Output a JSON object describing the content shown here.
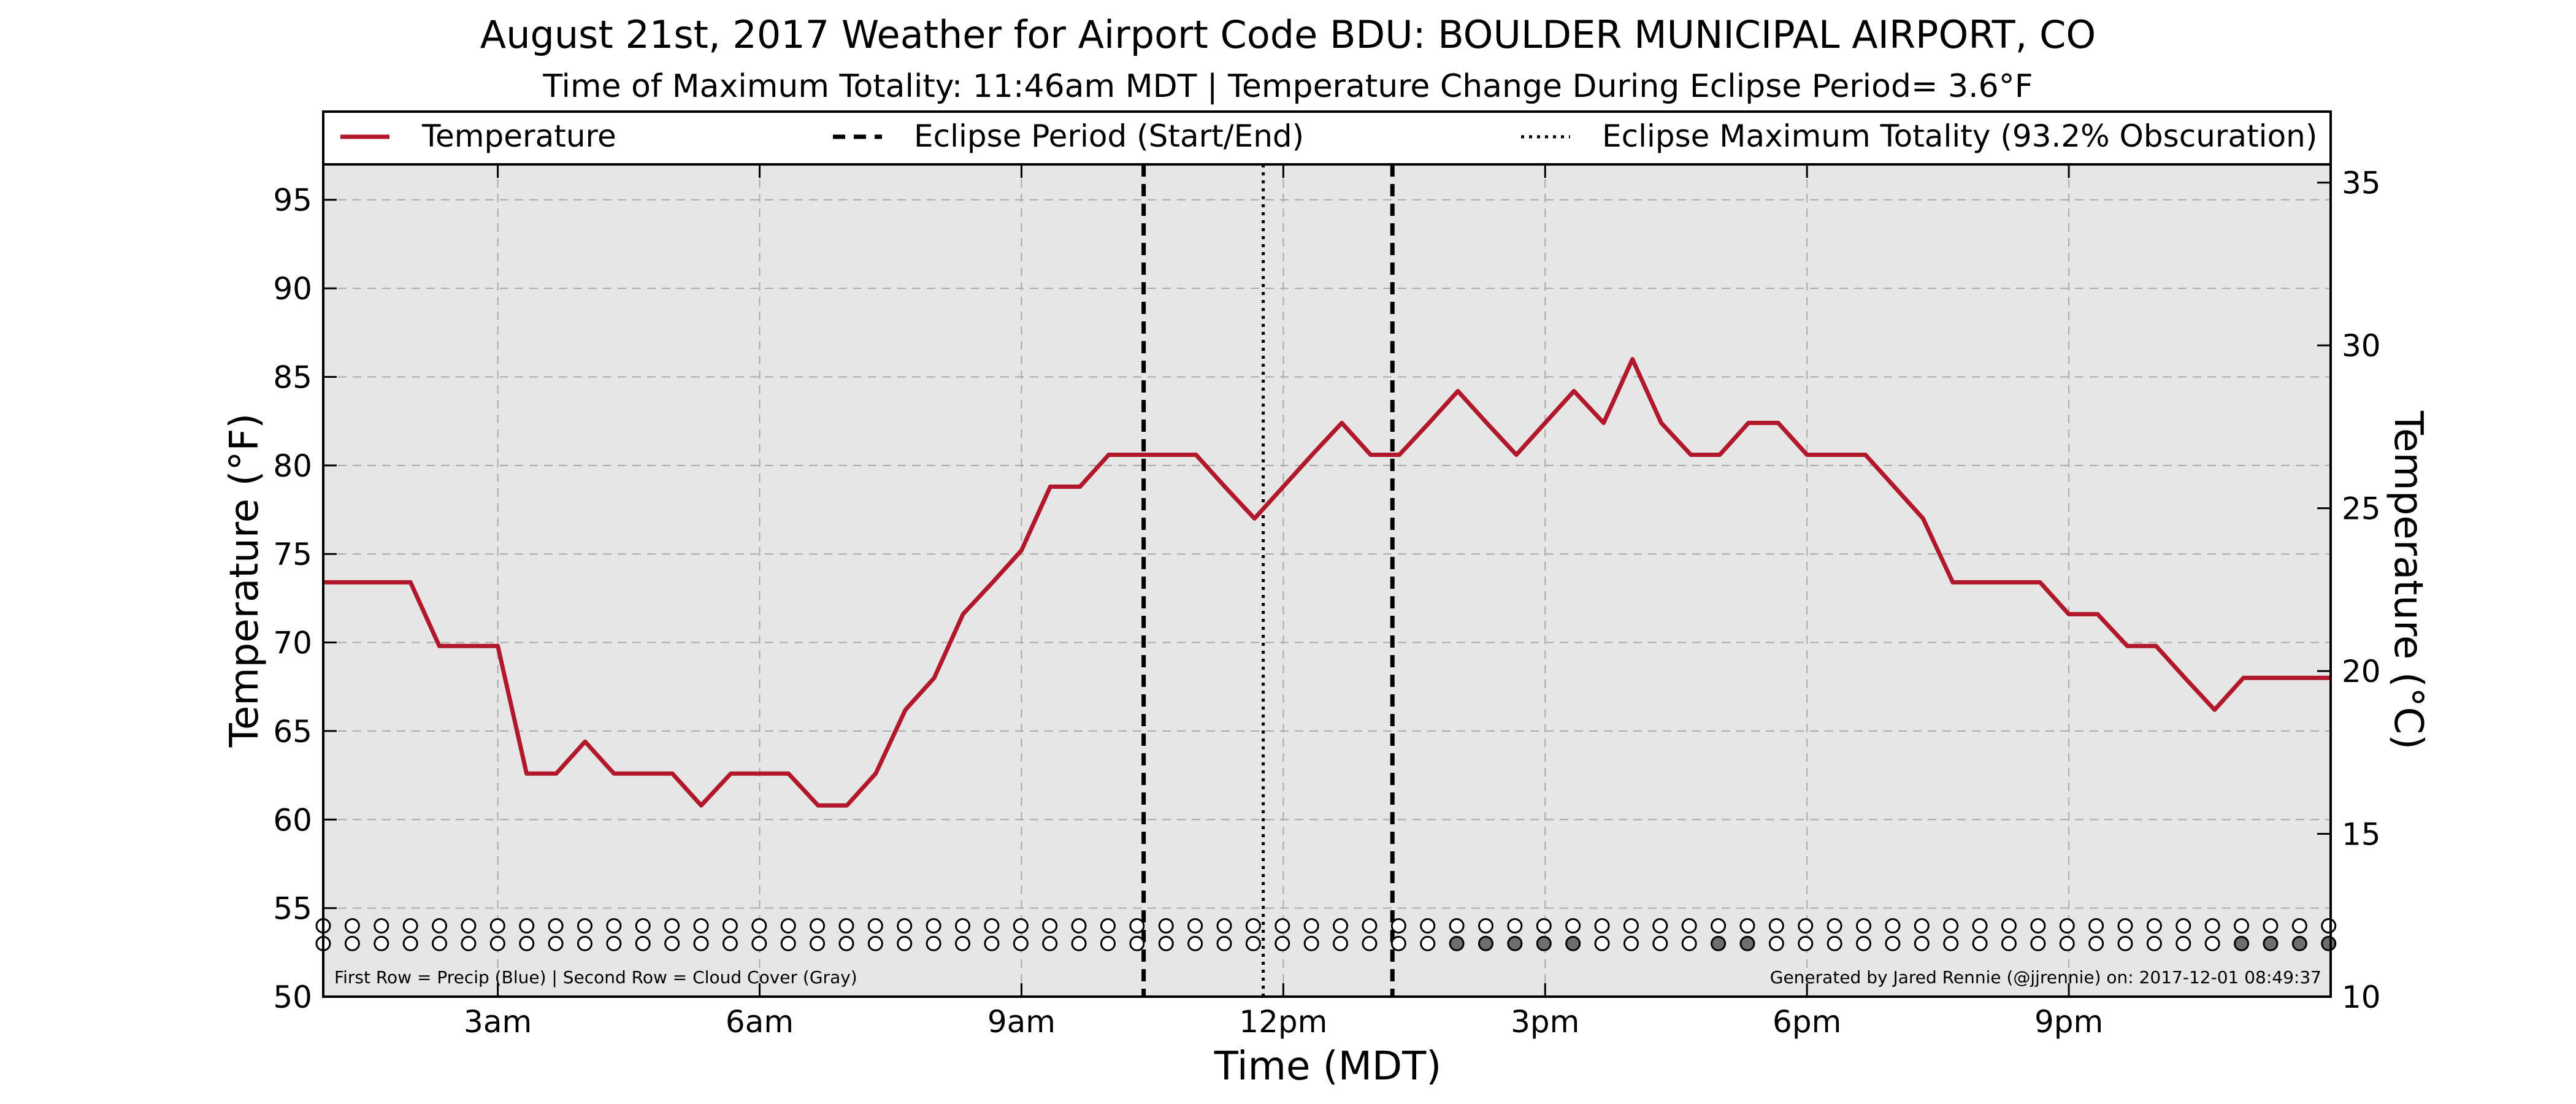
{
  "chart_data": {
    "type": "line",
    "title": "August 21st, 2017 Weather for Airport Code BDU: BOULDER MUNICIPAL AIRPORT, CO",
    "subtitle": "Time of Maximum Totality: 11:46am MDT | Temperature Change During Eclipse Period= 3.6°F",
    "xlabel": "Time (MDT)",
    "ylabel": "Temperature (°F)",
    "ylabel_right": "Temperature (°C)",
    "xlim": [
      1,
      24
    ],
    "ylim": [
      50,
      97
    ],
    "ylim_right": [
      10,
      35.56
    ],
    "x_ticks": [
      {
        "value": 3,
        "label": "3am"
      },
      {
        "value": 6,
        "label": "6am"
      },
      {
        "value": 9,
        "label": "9am"
      },
      {
        "value": 12,
        "label": "12pm"
      },
      {
        "value": 15,
        "label": "3pm"
      },
      {
        "value": 18,
        "label": "6pm"
      },
      {
        "value": 21,
        "label": "9pm"
      }
    ],
    "y_ticks": [
      50,
      55,
      60,
      65,
      70,
      75,
      80,
      85,
      90,
      95
    ],
    "y_ticks_right": [
      10,
      15,
      20,
      25,
      30,
      35
    ],
    "grid": true,
    "legend_position": "top",
    "legend": [
      {
        "label": "Temperature",
        "style": "solid",
        "color": "#b2182b"
      },
      {
        "label": "Eclipse Period (Start/End)",
        "style": "dashed",
        "color": "#000000"
      },
      {
        "label": "Eclipse Maximum Totality (93.2% Obscuration)",
        "style": "dotted",
        "color": "#000000"
      }
    ],
    "series": [
      {
        "name": "Temperature",
        "color": "#b2182b",
        "x": [
          1.0,
          1.33,
          1.67,
          2.0,
          2.33,
          2.67,
          3.0,
          3.33,
          3.67,
          4.0,
          4.33,
          4.67,
          5.0,
          5.33,
          5.67,
          6.0,
          6.33,
          6.67,
          7.0,
          7.33,
          7.67,
          8.0,
          8.33,
          8.67,
          9.0,
          9.33,
          9.67,
          10.0,
          10.33,
          10.67,
          11.0,
          11.33,
          11.67,
          12.0,
          12.33,
          12.67,
          13.0,
          13.33,
          13.67,
          14.0,
          14.33,
          14.67,
          15.0,
          15.33,
          15.67,
          16.0,
          16.33,
          16.67,
          17.0,
          17.33,
          17.67,
          18.0,
          18.33,
          18.67,
          19.0,
          19.33,
          19.67,
          20.0,
          20.33,
          20.67,
          21.0,
          21.33,
          21.67,
          22.0,
          22.33,
          22.67,
          23.0,
          23.33,
          23.67,
          24.0
        ],
        "values": [
          73.4,
          73.4,
          73.4,
          73.4,
          69.8,
          69.8,
          69.8,
          62.6,
          62.6,
          64.4,
          62.6,
          62.6,
          62.6,
          60.8,
          62.6,
          62.6,
          62.6,
          60.8,
          60.8,
          62.6,
          66.2,
          68.0,
          71.6,
          73.4,
          75.2,
          78.8,
          78.8,
          80.6,
          80.6,
          80.6,
          80.6,
          78.8,
          77.0,
          78.8,
          80.6,
          82.4,
          80.6,
          80.6,
          82.4,
          84.2,
          82.4,
          80.6,
          82.4,
          84.2,
          82.4,
          86.0,
          82.4,
          80.6,
          80.6,
          82.4,
          82.4,
          80.6,
          80.6,
          80.6,
          78.8,
          77.0,
          73.4,
          73.4,
          73.4,
          73.4,
          71.6,
          71.6,
          69.8,
          69.8,
          68.0,
          66.2,
          68.0,
          68.0,
          68.0,
          68.0
        ]
      }
    ],
    "eclipse_start": 10.4,
    "eclipse_end": 13.25,
    "eclipse_max": 11.77,
    "indicator_rows": {
      "note": "First Row = Precip (Blue) | Second Row = Cloud Cover (Gray)",
      "precip_level": 54.0,
      "cloud_level": 53.0,
      "x_start": 1.0,
      "x_step": 0.333,
      "count": 70,
      "precip_flags": [],
      "cloud_cover_flags": [
        39,
        40,
        41,
        42,
        43,
        48,
        49,
        66,
        67,
        68,
        69
      ]
    },
    "credit": "Generated by Jared Rennie (@jjrennie) on: 2017-12-01 08:49:37"
  }
}
